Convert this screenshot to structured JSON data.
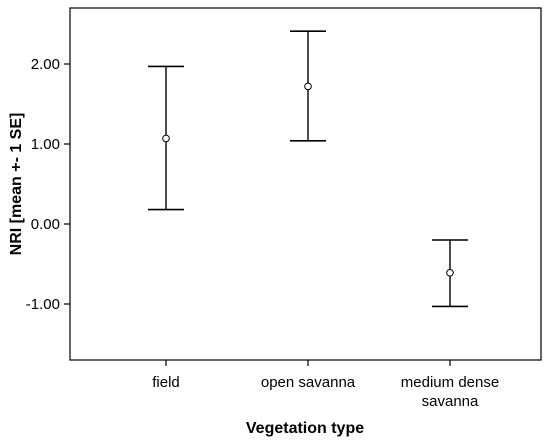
{
  "chart_data": {
    "type": "errorbar",
    "xlabel": "Vegetation type",
    "ylabel": "NRI [mean +- 1 SE]",
    "categories": [
      "field",
      "open savanna",
      "medium dense savanna"
    ],
    "category_lines": [
      [
        "field"
      ],
      [
        "open savanna"
      ],
      [
        "medium dense",
        "savanna"
      ]
    ],
    "means": [
      1.07,
      1.72,
      -0.61
    ],
    "lower": [
      0.18,
      1.04,
      -1.03
    ],
    "upper": [
      1.97,
      2.41,
      -0.2
    ],
    "yticks": [
      -1.0,
      0.0,
      1.0,
      2.0
    ],
    "ytick_labels": [
      "-1.00",
      "0.00",
      "1.00",
      "2.00"
    ],
    "ylim": [
      -1.7,
      2.7
    ],
    "grid": false,
    "colors": {
      "frame": "#000000",
      "marker": "#000000",
      "background": "#ffffff"
    }
  }
}
